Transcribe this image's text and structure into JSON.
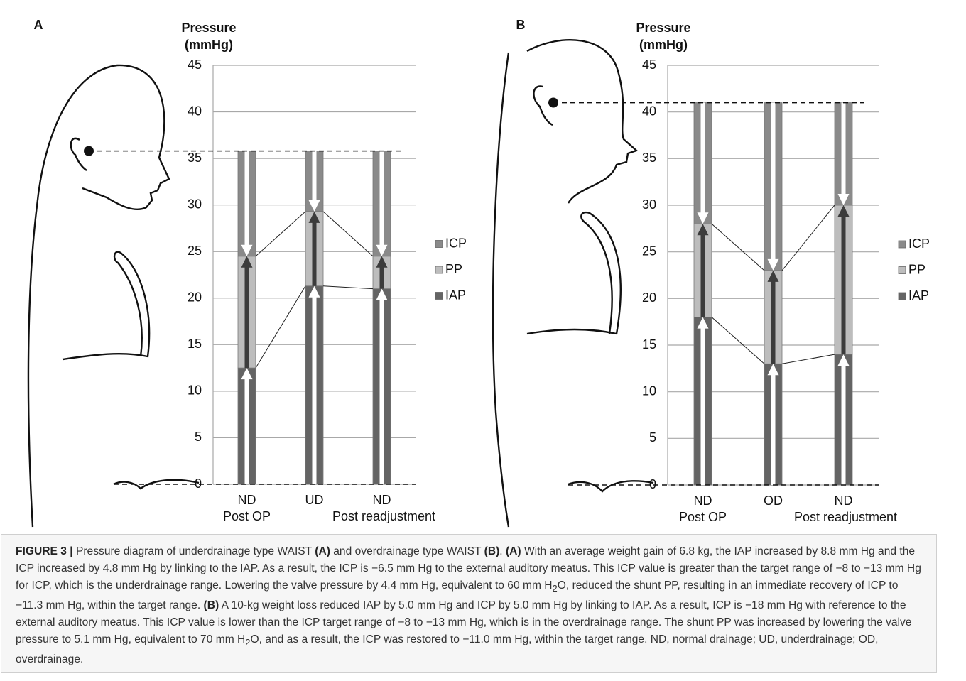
{
  "chart_data": [
    {
      "type": "bar",
      "stacked": true,
      "panel": "A",
      "y_label": [
        "Pressure",
        "(mmHg)"
      ],
      "categories": [
        "ND",
        "UD",
        "ND"
      ],
      "group_labels": [
        "Post OP",
        null,
        "Post readjustment"
      ],
      "series": [
        {
          "name": "ICP",
          "color": "#8a8a8a",
          "values": [
            11.3,
            6.5,
            11.3
          ]
        },
        {
          "name": "PP",
          "color": "#bdbdbd",
          "values": [
            12,
            8,
            3.5
          ]
        },
        {
          "name": "IAP",
          "color": "#646464",
          "values": [
            12.5,
            21.3,
            21
          ]
        }
      ],
      "ylim": [
        0,
        45
      ],
      "yticks": [
        0,
        5,
        10,
        15,
        20,
        25,
        30,
        35,
        40,
        45
      ],
      "grid": true,
      "legend": "right"
    },
    {
      "type": "bar",
      "stacked": true,
      "panel": "B",
      "y_label": [
        "Pressure",
        "(mmHg)"
      ],
      "categories": [
        "ND",
        "OD",
        "ND"
      ],
      "group_labels": [
        "Post OP",
        null,
        "Post readjustment"
      ],
      "series": [
        {
          "name": "ICP",
          "color": "#8a8a8a",
          "values": [
            13,
            18,
            11
          ]
        },
        {
          "name": "PP",
          "color": "#bdbdbd",
          "values": [
            10,
            10,
            16
          ]
        },
        {
          "name": "IAP",
          "color": "#646464",
          "values": [
            18,
            13,
            14
          ]
        }
      ],
      "ylim": [
        0,
        45
      ],
      "yticks": [
        0,
        5,
        10,
        15,
        20,
        25,
        30,
        35,
        40,
        45
      ],
      "grid": true,
      "legend": "right"
    }
  ],
  "caption": [
    {
      "text": "FIGURE 3 |",
      "style": "bold"
    },
    {
      "text": " Pressure diagram of underdrainage type WAIST "
    },
    {
      "text": "(A)",
      "style": "bold"
    },
    {
      "text": " and overdrainage type WAIST "
    },
    {
      "text": "(B)",
      "style": "bold"
    },
    {
      "text": ". "
    },
    {
      "text": "(A)",
      "style": "bold"
    },
    {
      "text": " With an average weight gain of 6.8 kg, the IAP increased by 8.8 mm Hg and the ICP increased by 4.8 mm Hg by linking to the IAP. As a result, the ICP is −6.5 mm Hg to the external auditory meatus. This ICP value is greater than the target range of −8 to −13 mm Hg for ICP, which is the underdrainage range. Lowering the valve pressure by 4.4 mm Hg, equivalent to 60 mm H"
    },
    {
      "text": "2",
      "style": "sub"
    },
    {
      "text": "O, reduced the shunt PP, resulting in an immediate recovery of ICP to −11.3 mm Hg, within the target range. "
    },
    {
      "text": "(B)",
      "style": "bold"
    },
    {
      "text": " A 10-kg weight loss reduced IAP by 5.0 mm Hg and ICP by 5.0 mm Hg by linking to IAP. As a result, ICP is −18 mm Hg with reference to the external auditory meatus. This ICP value is lower than the ICP target range of −8 to −13 mm Hg, which is in the overdrainage range. The shunt PP was increased by lowering the valve pressure to 5.1 mm Hg, equivalent to 70 mm H"
    },
    {
      "text": "2",
      "style": "sub"
    },
    {
      "text": "O, and as a result, the ICP was restored to −11.0 mm Hg, within the target range. ND, normal drainage; UD, underdrainage; OD, overdrainage."
    }
  ]
}
